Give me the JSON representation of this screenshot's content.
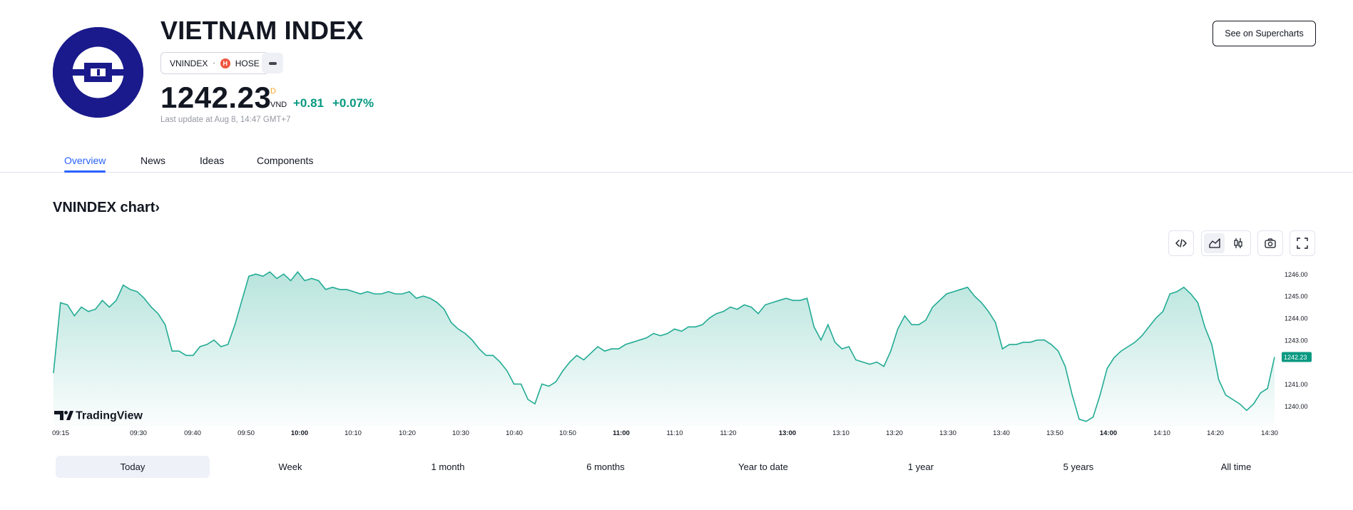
{
  "header": {
    "title": "VIETNAM INDEX",
    "symbol": "VNINDEX",
    "separator": "·",
    "exchange": "HOSE",
    "exchange_icon_glyph": "H",
    "price": "1242.23",
    "price_flag": "D",
    "currency": "VND",
    "change": "+0.81",
    "change_pct": "+0.07%",
    "last_update": "Last update at Aug 8, 14:47 GMT+7",
    "superchart_label": "See on Supercharts",
    "logo_color": "#1a1a8c"
  },
  "tabs": [
    {
      "label": "Overview",
      "active": true
    },
    {
      "label": "News",
      "active": false
    },
    {
      "label": "Ideas",
      "active": false
    },
    {
      "label": "Components",
      "active": false
    }
  ],
  "chart_section": {
    "heading": "VNINDEX chart",
    "heading_suffix": "›",
    "branding": "TradingView",
    "toolbar": [
      "embed-code-icon",
      "area-chart-icon",
      "candles-icon",
      "camera-icon",
      "fullscreen-icon"
    ]
  },
  "ranges": [
    {
      "label": "Today",
      "active": true
    },
    {
      "label": "Week",
      "active": false
    },
    {
      "label": "1 month",
      "active": false
    },
    {
      "label": "6 months",
      "active": false
    },
    {
      "label": "Year to date",
      "active": false
    },
    {
      "label": "1 year",
      "active": false
    },
    {
      "label": "5 years",
      "active": false
    },
    {
      "label": "All time",
      "active": false
    }
  ],
  "colors": {
    "up": "#089981",
    "accent": "#2962ff",
    "line": "#22ab94"
  },
  "chart_data": {
    "type": "area",
    "x_tick_labels": [
      "09:15",
      "09:30",
      "09:40",
      "09:50",
      "10:00",
      "10:10",
      "10:20",
      "10:30",
      "10:40",
      "10:50",
      "11:00",
      "11:10",
      "11:20",
      "13:00",
      "13:10",
      "13:20",
      "13:30",
      "13:40",
      "13:50",
      "14:00",
      "14:10",
      "14:20",
      "14:30"
    ],
    "bold_ticks": [
      "10:00",
      "11:00",
      "13:00",
      "14:00"
    ],
    "y_tick_labels": [
      "1246.00",
      "1245.00",
      "1244.00",
      "1243.00",
      "1241.00",
      "1240.00"
    ],
    "ylim": [
      1239.1,
      1246.3
    ],
    "last_value_label": "1242.23",
    "values": [
      1241.5,
      1244.7,
      1244.6,
      1244.1,
      1244.5,
      1244.3,
      1244.4,
      1244.8,
      1244.5,
      1244.8,
      1245.5,
      1245.3,
      1245.2,
      1244.9,
      1244.5,
      1244.2,
      1243.7,
      1242.5,
      1242.5,
      1242.3,
      1242.3,
      1242.7,
      1242.8,
      1243.0,
      1242.7,
      1242.8,
      1243.7,
      1244.8,
      1245.9,
      1246.0,
      1245.9,
      1246.1,
      1245.8,
      1246.0,
      1245.7,
      1246.1,
      1245.7,
      1245.8,
      1245.7,
      1245.3,
      1245.4,
      1245.3,
      1245.3,
      1245.2,
      1245.1,
      1245.2,
      1245.1,
      1245.1,
      1245.2,
      1245.1,
      1245.1,
      1245.2,
      1244.9,
      1245.0,
      1244.9,
      1244.7,
      1244.4,
      1243.8,
      1243.5,
      1243.3,
      1243.0,
      1242.6,
      1242.3,
      1242.3,
      1242.0,
      1241.6,
      1241.0,
      1241.0,
      1240.3,
      1240.1,
      1241.0,
      1240.9,
      1241.1,
      1241.6,
      1242.0,
      1242.3,
      1242.1,
      1242.4,
      1242.7,
      1242.5,
      1242.6,
      1242.6,
      1242.8,
      1242.9,
      1243.0,
      1243.1,
      1243.3,
      1243.2,
      1243.3,
      1243.5,
      1243.4,
      1243.6,
      1243.6,
      1243.7,
      1244.0,
      1244.2,
      1244.3,
      1244.5,
      1244.4,
      1244.6,
      1244.5,
      1244.2,
      1244.6,
      1244.7,
      1244.8,
      1244.9,
      1244.8,
      1244.8,
      1244.9,
      1243.6,
      1243.0,
      1243.7,
      1242.9,
      1242.6,
      1242.7,
      1242.1,
      1242.0,
      1241.9,
      1242.0,
      1241.8,
      1242.5,
      1243.5,
      1244.1,
      1243.7,
      1243.7,
      1243.9,
      1244.5,
      1244.8,
      1245.1,
      1245.2,
      1245.3,
      1245.4,
      1245.0,
      1244.7,
      1244.3,
      1243.8,
      1242.6,
      1242.8,
      1242.8,
      1242.9,
      1242.9,
      1243.0,
      1243.0,
      1242.8,
      1242.5,
      1241.8,
      1240.5,
      1239.4,
      1239.3,
      1239.5,
      1240.5,
      1241.7,
      1242.2,
      1242.5,
      1242.7,
      1242.9,
      1243.2,
      1243.6,
      1244.0,
      1244.3,
      1245.1,
      1245.2,
      1245.4,
      1245.1,
      1244.7,
      1243.6,
      1242.8,
      1241.2,
      1240.5,
      1240.3,
      1240.1,
      1239.8,
      1240.1,
      1240.6,
      1240.8,
      1242.23
    ],
    "xlabel": "",
    "ylabel": "",
    "grid": false
  }
}
